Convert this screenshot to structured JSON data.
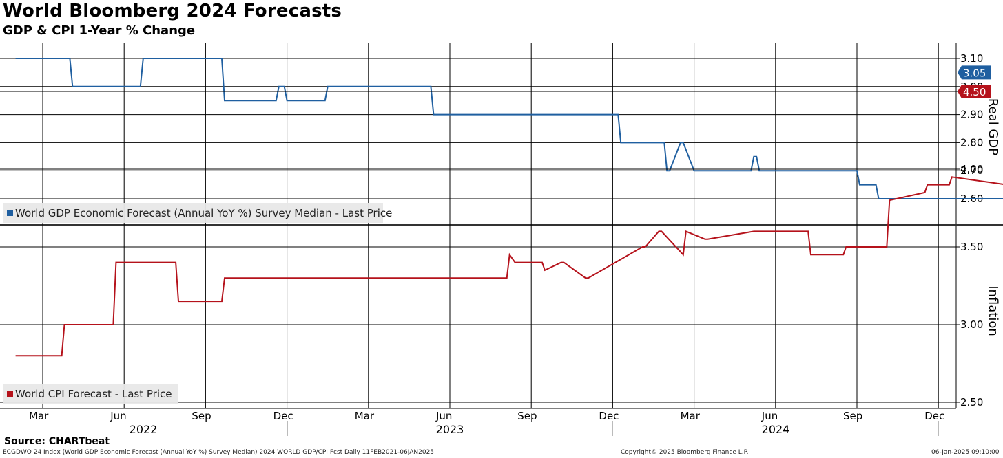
{
  "title": "World Bloomberg 2024 Forecasts",
  "subtitle": "GDP & CPI 1-Year % Change",
  "source": "Source: CHARTbeat",
  "footer": {
    "left": "ECGDWO 24 Index (World GDP Economic Forecast (Annual YoY %) Survey Median) 2024 WORLD GDP/CPI Fcst  Daily 11FEB2021-06JAN2025",
    "center": "Copyright© 2025 Bloomberg Finance L.P.",
    "right": "06-Jan-2025 09:10:00"
  },
  "colors": {
    "gdp": "#1f5fa0",
    "cpi": "#b5121b",
    "grid": "#000000"
  },
  "chart_data": [
    {
      "type": "line",
      "name": "gdp",
      "axis_title": "Real GDP",
      "legend": "World GDP Economic Forecast (Annual YoY %) Survey Median - Last Price",
      "last_value": "3.05",
      "ylim": [
        2.52,
        3.15
      ],
      "yticks": [
        "2.60",
        "2.70",
        "2.80",
        "2.90",
        "3.00",
        "3.10"
      ],
      "x": [
        0,
        2,
        2.1,
        4.6,
        4.7,
        7.6,
        7.7,
        9.6,
        9.7,
        9.9,
        10,
        11.4,
        11.5,
        15.3,
        15.4,
        22.2,
        22.3,
        23.9,
        24,
        24.1,
        24.5,
        24.6,
        24.8,
        25,
        27.1,
        27.2,
        27.3,
        27.4,
        31,
        31.1,
        31.7,
        31.8,
        38.8,
        38.9,
        41.9,
        42,
        42.3,
        42.4,
        43.9,
        44,
        46,
        46.1,
        49.1,
        49.2,
        54,
        54.1,
        56.5,
        56.6,
        58,
        58.1,
        58.5,
        58.6,
        61,
        61.1,
        62.4,
        62.5,
        62.6,
        62.7,
        63.9,
        64,
        65.3,
        65.4,
        66,
        66.1,
        66.3,
        66.4,
        67.2,
        67.3
      ],
      "values": [
        3.1,
        3.1,
        3.0,
        3.0,
        3.1,
        3.1,
        2.95,
        2.95,
        3.0,
        3.0,
        2.95,
        2.95,
        3.0,
        3.0,
        2.9,
        2.9,
        2.8,
        2.8,
        2.7,
        2.7,
        2.8,
        2.8,
        2.75,
        2.7,
        2.7,
        2.75,
        2.75,
        2.7,
        2.7,
        2.65,
        2.65,
        2.6,
        2.6,
        2.65,
        2.65,
        2.6,
        2.6,
        2.65,
        2.6,
        2.7,
        2.7,
        2.8,
        2.8,
        2.9,
        2.9,
        3.0,
        3.0,
        3.05,
        3.05,
        3.0,
        3.1,
        3.1,
        3.05,
        3.0,
        3.0,
        3.1,
        3.1,
        3.1,
        3.1,
        3.1,
        3.1,
        3.1,
        3.1,
        3.1,
        3.1,
        3.1,
        3.05,
        3.05
      ]
    },
    {
      "type": "line",
      "name": "cpi",
      "axis_title": "Inflation",
      "legend": "World CPI Forecast - Last Price",
      "last_value": "4.50",
      "ylim": [
        2.45,
        4.77
      ],
      "yticks": [
        "2.50",
        "3.00",
        "3.50",
        "4.00",
        "4.50"
      ],
      "x": [
        0,
        1.7,
        1.8,
        3.6,
        3.7,
        5.9,
        6,
        7.6,
        7.7,
        18.1,
        18.2,
        18.4,
        19.4,
        19.5,
        20.1,
        20.2,
        21,
        21.1,
        23.1,
        23.2,
        23.7,
        23.8,
        24.6,
        24.7,
        25.4,
        25.5,
        27.2,
        27.3,
        27.4,
        29.2,
        29.3,
        30.5,
        30.6,
        31,
        31.1,
        32.1,
        32.2,
        33.5,
        33.6,
        34.4,
        34.5,
        36.5,
        36.6,
        38.3,
        38.4,
        39,
        39.1,
        40.5,
        40.6,
        41.9,
        42,
        44.3,
        44.4,
        46.5,
        46.6,
        49.5,
        49.6,
        50.3,
        50.4,
        51,
        51.1,
        51.6,
        51.7,
        52.5,
        52.6,
        54.5,
        54.6,
        56.3,
        56.4,
        58.5,
        58.6,
        60,
        60.1,
        63.5,
        63.6,
        64.8,
        64.9,
        65.2,
        65.3,
        66.3,
        66.4,
        67.3
      ],
      "values": [
        2.8,
        2.8,
        3.0,
        3.0,
        3.4,
        3.4,
        3.15,
        3.15,
        3.3,
        3.3,
        3.45,
        3.4,
        3.4,
        3.35,
        3.4,
        3.4,
        3.3,
        3.3,
        3.5,
        3.5,
        3.6,
        3.6,
        3.45,
        3.6,
        3.55,
        3.55,
        3.6,
        3.6,
        3.6,
        3.6,
        3.45,
        3.45,
        3.5,
        3.5,
        3.5,
        3.5,
        3.8,
        3.85,
        3.9,
        3.9,
        3.95,
        3.9,
        4.0,
        4.1,
        4.1,
        4.3,
        4.3,
        4.4,
        4.4,
        4.4,
        4.3,
        4.3,
        4.2,
        4.1,
        4.1,
        4.0,
        4.0,
        4.0,
        4.0,
        4.0,
        4.2,
        4.1,
        4.15,
        4.15,
        4.4,
        4.4,
        4.6,
        4.6,
        4.55,
        4.55,
        4.6,
        4.6,
        4.55,
        4.55,
        4.5,
        4.5,
        4.4,
        4.5,
        4.5,
        4.55,
        4.5,
        4.5
      ]
    }
  ],
  "x_axis": {
    "months": [
      "Mar",
      "Jun",
      "Sep",
      "Dec",
      "Mar",
      "Jun",
      "Sep",
      "Dec",
      "Mar",
      "Jun",
      "Sep",
      "Dec"
    ],
    "years": [
      "2022",
      "2023",
      "2024"
    ]
  }
}
